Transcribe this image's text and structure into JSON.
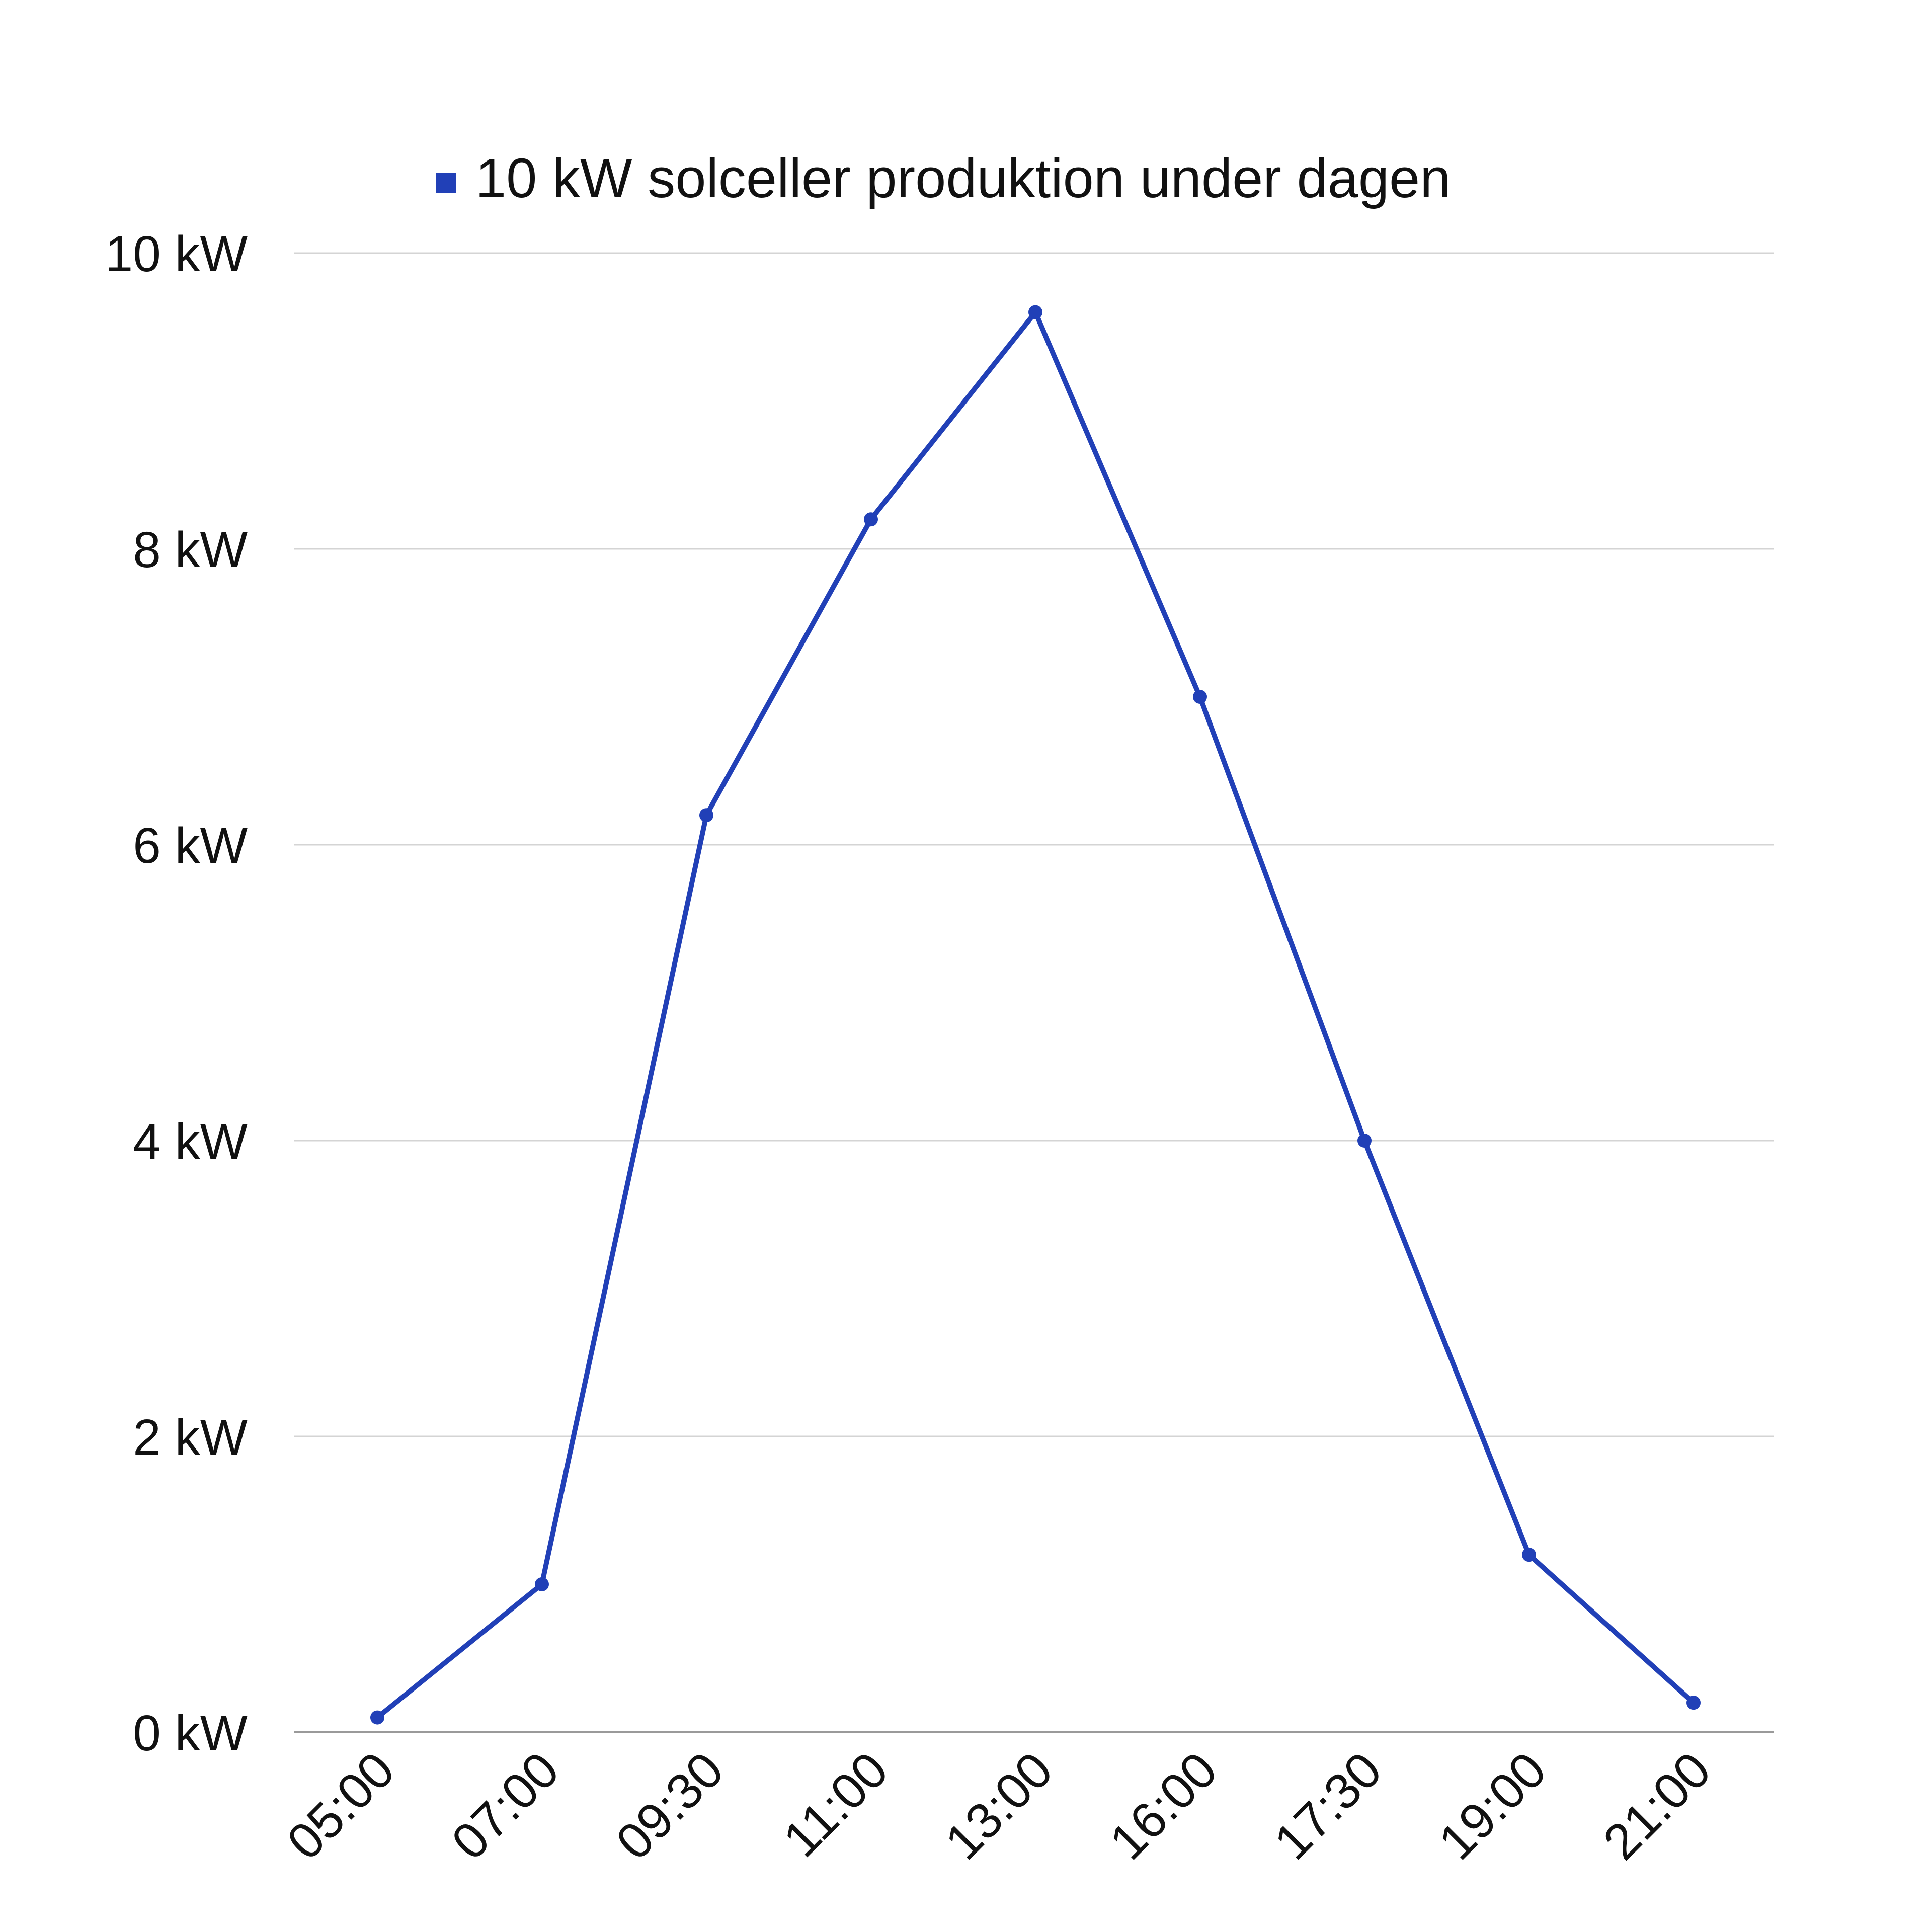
{
  "chart_data": {
    "type": "line",
    "title": "",
    "xlabel": "",
    "ylabel": "",
    "categories": [
      "05:00",
      "07:00",
      "09:30",
      "11:00",
      "13:00",
      "16:00",
      "17:30",
      "19:00",
      "21:00"
    ],
    "series": [
      {
        "name": "10 kW solceller produktion under dagen",
        "values": [
          0.1,
          1.0,
          6.2,
          8.2,
          9.6,
          7.0,
          4.0,
          1.2,
          0.2
        ],
        "color": "#2140b7",
        "marker": "circle"
      }
    ],
    "ylim": [
      0,
      10
    ],
    "yticks": [
      0,
      2,
      4,
      6,
      8,
      10
    ],
    "ytick_labels": [
      "0 kW",
      "2 kW",
      "4 kW",
      "6 kW",
      "8 kW",
      "10 kW"
    ],
    "grid": true,
    "legend_position": "top",
    "x_tick_rotation": "diagonal"
  }
}
